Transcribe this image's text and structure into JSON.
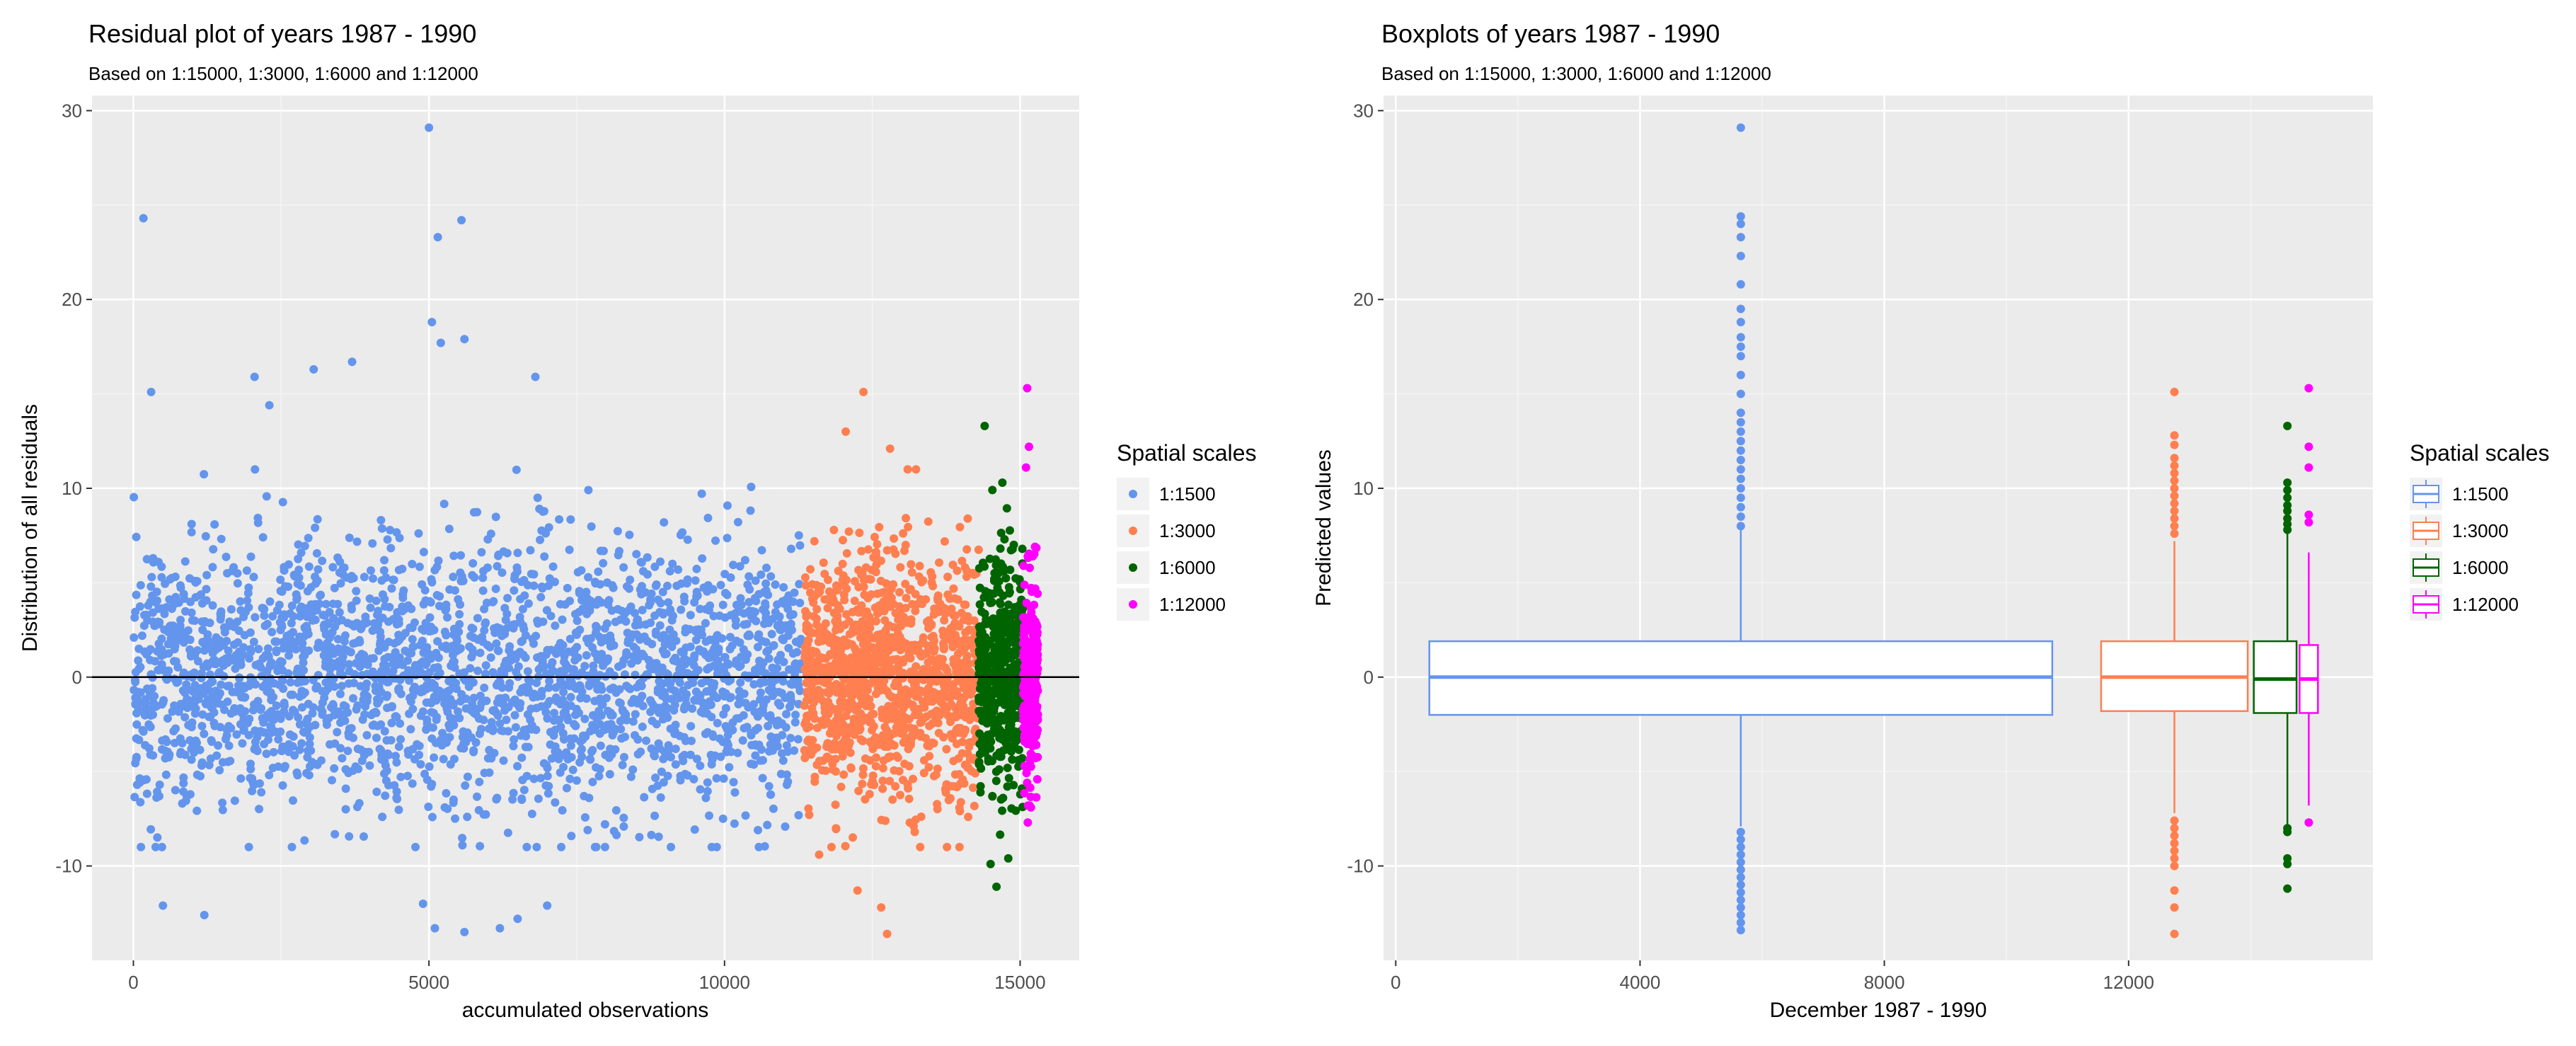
{
  "chart_data": [
    {
      "type": "scatter",
      "title": "Residual plot of years 1987 - 1990",
      "subtitle": "Based on 1:15000, 1:3000, 1:6000 and 1:12000",
      "xlabel": "accumulated observations",
      "ylabel": "Distribution of all residuals",
      "xlim": [
        -700,
        16000
      ],
      "ylim": [
        -15,
        30.8
      ],
      "x_ticks": [
        0,
        5000,
        10000,
        15000
      ],
      "x_tick_labels": [
        "0",
        "5000",
        "10000",
        "15000"
      ],
      "y_ticks": [
        -10,
        0,
        10,
        20,
        30
      ],
      "y_tick_labels": [
        "-10",
        "0",
        "10",
        "20",
        "30"
      ],
      "hline": 0,
      "grid": true,
      "legend": {
        "title": "Spatial scales",
        "position": "right"
      },
      "series": [
        {
          "name": "1:1500",
          "color": "#6495ED",
          "x_range": [
            0,
            11300
          ],
          "band": [
            -4,
            4
          ],
          "spread": 3.5,
          "count": 2600,
          "outliers": [
            [
              170,
              24.3
            ],
            [
              300,
              15.1
            ],
            [
              5000,
              29.1
            ],
            [
              5150,
              23.3
            ],
            [
              5550,
              24.2
            ],
            [
              5050,
              18.8
            ],
            [
              5200,
              17.7
            ],
            [
              5600,
              17.9
            ],
            [
              2300,
              14.4
            ],
            [
              3700,
              16.7
            ],
            [
              3050,
              16.3
            ],
            [
              6800,
              15.9
            ],
            [
              2050,
              15.9
            ],
            [
              1200,
              -12.6
            ],
            [
              500,
              -12.1
            ],
            [
              5100,
              -13.3
            ],
            [
              5600,
              -13.5
            ],
            [
              6200,
              -13.3
            ],
            [
              7000,
              -12.1
            ],
            [
              4900,
              -12.0
            ],
            [
              6500,
              -12.8
            ]
          ]
        },
        {
          "name": "1:3000",
          "color": "#FF7F50",
          "x_range": [
            11350,
            14300
          ],
          "band": [
            -3.5,
            3.5
          ],
          "spread": 3.2,
          "count": 1200,
          "outliers": [
            [
              12350,
              15.1
            ],
            [
              12800,
              12.1
            ],
            [
              12050,
              13.0
            ],
            [
              12750,
              -13.6
            ],
            [
              12650,
              -12.2
            ],
            [
              12250,
              -11.3
            ],
            [
              11600,
              -9.4
            ]
          ]
        },
        {
          "name": "1:6000",
          "color": "#006400",
          "x_range": [
            14300,
            15050
          ],
          "band": [
            -3,
            3
          ],
          "spread": 3.0,
          "count": 520,
          "outliers": [
            [
              14400,
              13.3
            ],
            [
              14700,
              10.3
            ],
            [
              14500,
              -9.9
            ],
            [
              14600,
              -11.1
            ],
            [
              14800,
              -9.6
            ]
          ]
        },
        {
          "name": "1:12000",
          "color": "#FF00FF",
          "x_range": [
            15050,
            15300
          ],
          "band": [
            -2.5,
            2.5
          ],
          "spread": 2.5,
          "count": 260,
          "outliers": [
            [
              15120,
              15.3
            ],
            [
              15150,
              12.2
            ],
            [
              15100,
              11.1
            ],
            [
              15130,
              -7.7
            ],
            [
              15160,
              -6.8
            ]
          ]
        }
      ]
    },
    {
      "type": "boxplot",
      "title": "Boxplots of years 1987 - 1990",
      "subtitle": "Based on 1:15000, 1:3000, 1:6000 and 1:12000",
      "xlabel": "December 1987 - 1990",
      "ylabel": "Predicted values",
      "xlim": [
        -200,
        16000
      ],
      "ylim": [
        -15,
        30.8
      ],
      "x_ticks": [
        0,
        4000,
        8000,
        12000
      ],
      "x_tick_labels": [
        "0",
        "4000",
        "8000",
        "12000"
      ],
      "y_ticks": [
        -10,
        0,
        10,
        20,
        30
      ],
      "y_tick_labels": [
        "-10",
        "0",
        "10",
        "20",
        "30"
      ],
      "grid": true,
      "legend": {
        "title": "Spatial scales",
        "position": "right"
      },
      "boxes": [
        {
          "name": "1:1500",
          "color": "#6495ED",
          "x_center": 5650,
          "x_left": 550,
          "x_right": 10750,
          "q1": -2.0,
          "median": 0.0,
          "q3": 1.9,
          "whisker_low": -7.9,
          "whisker_high": 7.8,
          "outliers": [
            8,
            8.5,
            9,
            9.5,
            10,
            10.5,
            11,
            11.5,
            12,
            12.5,
            13,
            13.5,
            14,
            15,
            16,
            17,
            17.5,
            18,
            18.8,
            19.5,
            20.8,
            22.3,
            23.3,
            24.0,
            24.4,
            29.1,
            -8.2,
            -8.6,
            -9,
            -9.4,
            -9.8,
            -10.2,
            -10.6,
            -11,
            -11.4,
            -11.8,
            -12.2,
            -12.6,
            -13.0,
            -13.4
          ]
        },
        {
          "name": "1:3000",
          "color": "#FF7F50",
          "x_center": 12750,
          "x_left": 11550,
          "x_right": 13950,
          "q1": -1.8,
          "median": 0.0,
          "q3": 1.9,
          "whisker_low": -7.2,
          "whisker_high": 7.2,
          "outliers": [
            7.6,
            8,
            8.4,
            8.8,
            9.2,
            9.6,
            10,
            10.4,
            10.8,
            11.2,
            11.6,
            12.3,
            12.8,
            15.1,
            -7.6,
            -8,
            -8.4,
            -8.8,
            -9.2,
            -9.6,
            -10,
            -11.3,
            -12.2,
            -13.6
          ]
        },
        {
          "name": "1:6000",
          "color": "#006400",
          "x_center": 14600,
          "x_left": 14050,
          "x_right": 14750,
          "q1": -1.9,
          "median": -0.1,
          "q3": 1.9,
          "whisker_low": -7.8,
          "whisker_high": 7.6,
          "outliers": [
            7.8,
            8.1,
            8.4,
            8.8,
            9.1,
            9.5,
            9.9,
            10.3,
            13.3,
            -8.0,
            -8.2,
            -9.6,
            -9.9,
            -11.2
          ]
        },
        {
          "name": "1:12000",
          "color": "#FF00FF",
          "x_center": 14950,
          "x_left": 14800,
          "x_right": 15100,
          "q1": -1.9,
          "median": -0.1,
          "q3": 1.7,
          "whisker_low": -6.8,
          "whisker_high": 6.6,
          "outliers": [
            8.2,
            8.6,
            11.1,
            12.2,
            15.3,
            -7.7
          ]
        }
      ]
    }
  ]
}
